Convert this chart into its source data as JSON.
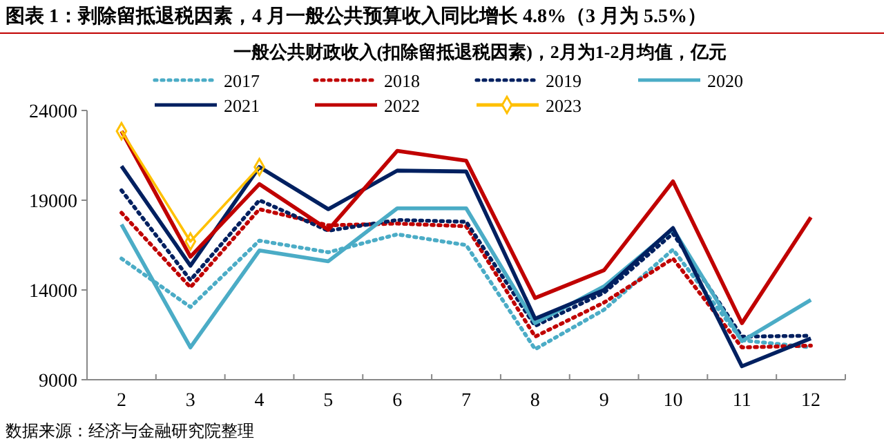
{
  "chart_data": {
    "type": "line",
    "title": "图表 1：剥除留抵退税因素，4 月一般公共预算收入同比增长 4.8%（3 月为 5.5%）",
    "subtitle": "一般公共财政收入(扣除留抵退税因素)，2月为1-2月均值，亿元",
    "annotations": [
      "数据来源：经济与金融研究院整理"
    ],
    "categories": [
      "2",
      "3",
      "4",
      "5",
      "6",
      "7",
      "8",
      "9",
      "10",
      "11",
      "12"
    ],
    "ylim": [
      9000,
      24000
    ],
    "yticks": [
      9000,
      14000,
      19000,
      24000
    ],
    "grid": false,
    "legend": "top",
    "marker": "none",
    "series": [
      {
        "name": "2017",
        "color": "#4bacc6",
        "line_style": "dotted",
        "values": [
          15750,
          13050,
          16750,
          16100,
          17100,
          16500,
          10700,
          12900,
          16250,
          11200,
          10800
        ]
      },
      {
        "name": "2018",
        "color": "#c00000",
        "line_style": "dotted",
        "values": [
          18300,
          14150,
          18500,
          17600,
          17700,
          17550,
          11400,
          13300,
          15750,
          10800,
          10900
        ]
      },
      {
        "name": "2019",
        "color": "#002060",
        "line_style": "dotted",
        "values": [
          19550,
          14550,
          19000,
          17300,
          17900,
          17800,
          12000,
          13850,
          17150,
          11400,
          11450
        ]
      },
      {
        "name": "2020",
        "color": "#4bacc6",
        "line_style": "solid",
        "values": [
          17650,
          10800,
          16200,
          15600,
          18550,
          18550,
          12150,
          14200,
          17400,
          11150,
          13450
        ]
      },
      {
        "name": "2021",
        "color": "#002060",
        "line_style": "solid",
        "values": [
          20900,
          15350,
          20850,
          18500,
          20650,
          20600,
          12400,
          14000,
          17450,
          9750,
          11300
        ]
      },
      {
        "name": "2022",
        "color": "#c00000",
        "line_style": "solid",
        "values": [
          22850,
          15850,
          19900,
          17350,
          21750,
          21200,
          13550,
          15100,
          20050,
          12150,
          18050
        ]
      },
      {
        "name": "2023",
        "color": "#ffc000",
        "line_style": "solid",
        "marker": "diamond",
        "values": [
          22850,
          16700,
          20850,
          null,
          null,
          null,
          null,
          null,
          null,
          null,
          null
        ]
      }
    ]
  }
}
